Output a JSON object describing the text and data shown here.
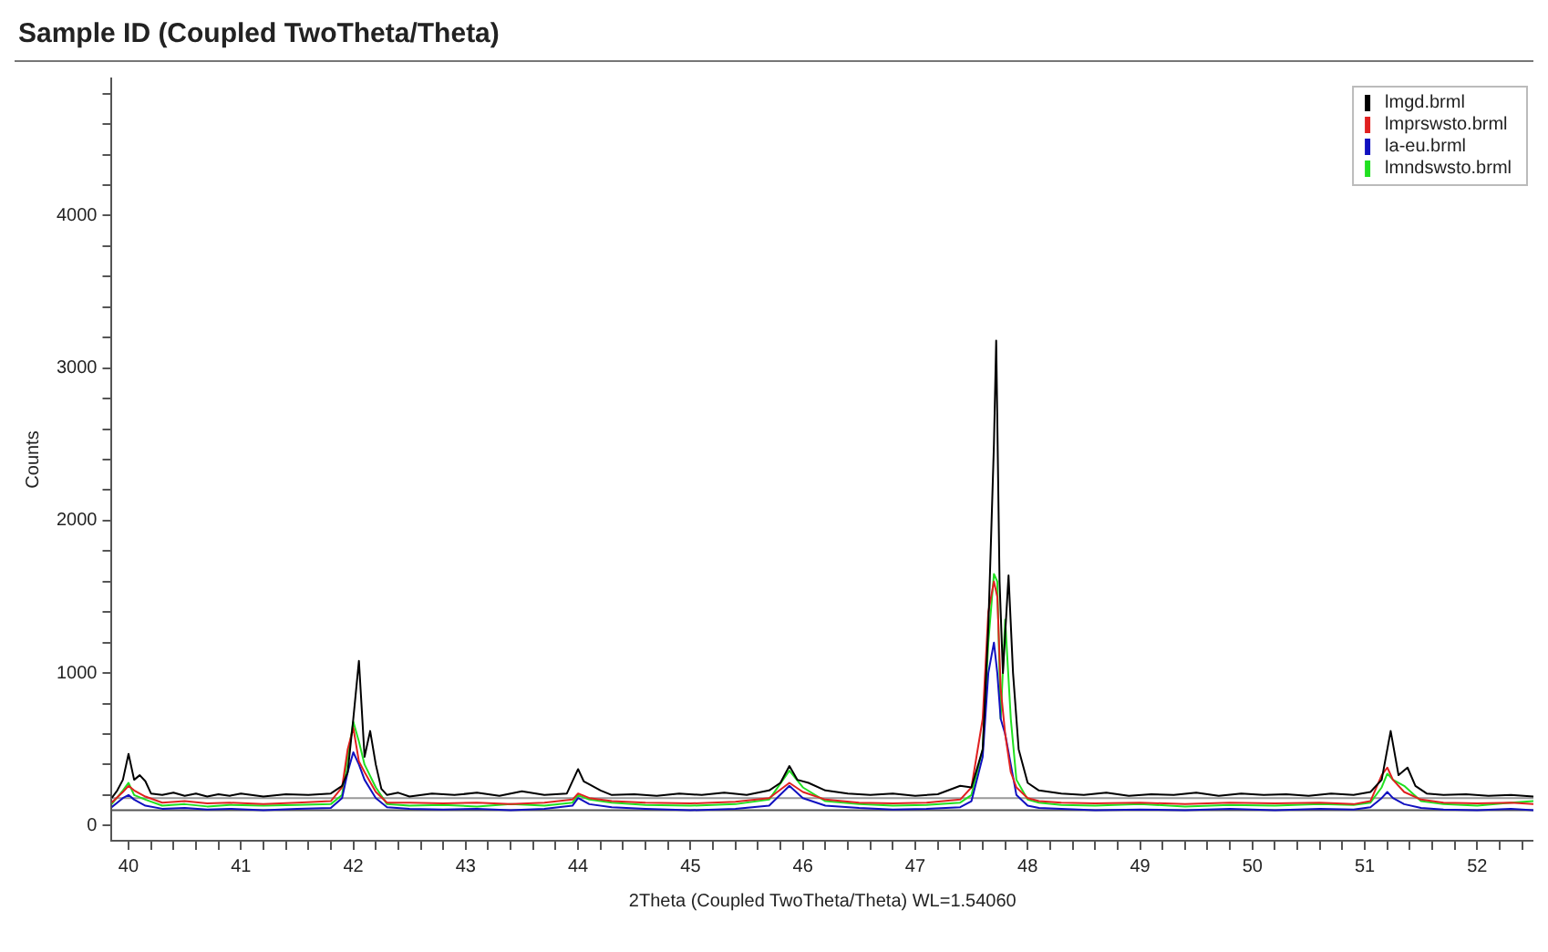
{
  "chart_data": {
    "type": "line",
    "title": "Sample ID (Coupled TwoTheta/Theta)",
    "xlabel": "2Theta (Coupled TwoTheta/Theta) WL=1.54060",
    "ylabel": "Counts",
    "xlim": [
      39.85,
      52.5
    ],
    "ylim": [
      -100,
      4900
    ],
    "xticks": [
      {
        "value": 40,
        "label": "40"
      },
      {
        "value": 40.2,
        "label": null
      },
      {
        "value": 40.4,
        "label": null
      },
      {
        "value": 40.6,
        "label": null
      },
      {
        "value": 40.8,
        "label": null
      },
      {
        "value": 41,
        "label": "41"
      },
      {
        "value": 41.2,
        "label": null
      },
      {
        "value": 41.4,
        "label": null
      },
      {
        "value": 41.6,
        "label": null
      },
      {
        "value": 41.8,
        "label": null
      },
      {
        "value": 42,
        "label": "42"
      },
      {
        "value": 42.2,
        "label": null
      },
      {
        "value": 42.4,
        "label": null
      },
      {
        "value": 42.6,
        "label": null
      },
      {
        "value": 42.8,
        "label": null
      },
      {
        "value": 43,
        "label": "43"
      },
      {
        "value": 43.2,
        "label": null
      },
      {
        "value": 43.4,
        "label": null
      },
      {
        "value": 43.6,
        "label": null
      },
      {
        "value": 43.8,
        "label": null
      },
      {
        "value": 44,
        "label": "44"
      },
      {
        "value": 44.2,
        "label": null
      },
      {
        "value": 44.4,
        "label": null
      },
      {
        "value": 44.6,
        "label": null
      },
      {
        "value": 44.8,
        "label": null
      },
      {
        "value": 45,
        "label": "45"
      },
      {
        "value": 45.2,
        "label": null
      },
      {
        "value": 45.4,
        "label": null
      },
      {
        "value": 45.6,
        "label": null
      },
      {
        "value": 45.8,
        "label": null
      },
      {
        "value": 46,
        "label": "46"
      },
      {
        "value": 46.2,
        "label": null
      },
      {
        "value": 46.4,
        "label": null
      },
      {
        "value": 46.6,
        "label": null
      },
      {
        "value": 46.8,
        "label": null
      },
      {
        "value": 47,
        "label": "47"
      },
      {
        "value": 47.2,
        "label": null
      },
      {
        "value": 47.4,
        "label": null
      },
      {
        "value": 47.6,
        "label": null
      },
      {
        "value": 47.8,
        "label": null
      },
      {
        "value": 48,
        "label": "48"
      },
      {
        "value": 48.2,
        "label": null
      },
      {
        "value": 48.4,
        "label": null
      },
      {
        "value": 48.6,
        "label": null
      },
      {
        "value": 48.8,
        "label": null
      },
      {
        "value": 49,
        "label": "49"
      },
      {
        "value": 49.2,
        "label": null
      },
      {
        "value": 49.4,
        "label": null
      },
      {
        "value": 49.6,
        "label": null
      },
      {
        "value": 49.8,
        "label": null
      },
      {
        "value": 50,
        "label": "50"
      },
      {
        "value": 50.2,
        "label": null
      },
      {
        "value": 50.4,
        "label": null
      },
      {
        "value": 50.6,
        "label": null
      },
      {
        "value": 50.8,
        "label": null
      },
      {
        "value": 51,
        "label": "51"
      },
      {
        "value": 51.2,
        "label": null
      },
      {
        "value": 51.4,
        "label": null
      },
      {
        "value": 51.6,
        "label": null
      },
      {
        "value": 51.8,
        "label": null
      },
      {
        "value": 52,
        "label": "52"
      },
      {
        "value": 52.2,
        "label": null
      },
      {
        "value": 52.4,
        "label": null
      }
    ],
    "yticks": [
      0,
      {
        "value": 200,
        "label": null
      },
      {
        "value": 400,
        "label": null
      },
      {
        "value": 600,
        "label": null
      },
      {
        "value": 800,
        "label": null
      },
      1000,
      {
        "value": 1200,
        "label": null
      },
      {
        "value": 1400,
        "label": null
      },
      {
        "value": 1600,
        "label": null
      },
      {
        "value": 1800,
        "label": null
      },
      2000,
      {
        "value": 2200,
        "label": null
      },
      {
        "value": 2400,
        "label": null
      },
      {
        "value": 2600,
        "label": null
      },
      {
        "value": 2800,
        "label": null
      },
      3000,
      {
        "value": 3200,
        "label": null
      },
      {
        "value": 3400,
        "label": null
      },
      {
        "value": 3600,
        "label": null
      },
      {
        "value": 3800,
        "label": null
      },
      4000,
      {
        "value": 4200,
        "label": null
      },
      {
        "value": 4400,
        "label": null
      },
      {
        "value": 4600,
        "label": null
      },
      {
        "value": 4800,
        "label": null
      }
    ],
    "grid": false,
    "legend": "top right",
    "marker": "none",
    "line_style": "solid",
    "ref_lines": [
      {
        "axis": "y",
        "value": 180,
        "color": "#999999"
      },
      {
        "axis": "y",
        "value": 100,
        "color": "#555555"
      }
    ],
    "series": [
      {
        "name": "lmgd.brml",
        "color": "#000000",
        "x": [
          39.85,
          39.9,
          39.95,
          40.0,
          40.05,
          40.1,
          40.15,
          40.2,
          40.3,
          40.4,
          40.5,
          40.6,
          40.7,
          40.8,
          40.9,
          41.0,
          41.2,
          41.4,
          41.6,
          41.8,
          41.9,
          41.95,
          42.0,
          42.05,
          42.1,
          42.15,
          42.2,
          42.25,
          42.3,
          42.4,
          42.5,
          42.7,
          42.9,
          43.1,
          43.3,
          43.5,
          43.7,
          43.9,
          44.0,
          44.05,
          44.1,
          44.2,
          44.3,
          44.5,
          44.7,
          44.9,
          45.1,
          45.3,
          45.5,
          45.7,
          45.8,
          45.88,
          45.95,
          46.05,
          46.2,
          46.4,
          46.6,
          46.8,
          47.0,
          47.2,
          47.4,
          47.5,
          47.6,
          47.65,
          47.7,
          47.72,
          47.75,
          47.78,
          47.83,
          47.87,
          47.92,
          48.0,
          48.1,
          48.3,
          48.5,
          48.7,
          48.9,
          49.1,
          49.3,
          49.5,
          49.7,
          49.9,
          50.1,
          50.3,
          50.5,
          50.7,
          50.9,
          51.05,
          51.15,
          51.23,
          51.3,
          51.38,
          51.45,
          51.55,
          51.7,
          51.9,
          52.1,
          52.3,
          52.5
        ],
        "values": [
          180,
          230,
          300,
          470,
          300,
          330,
          290,
          210,
          200,
          215,
          195,
          210,
          190,
          205,
          195,
          210,
          190,
          205,
          200,
          210,
          260,
          350,
          700,
          1080,
          450,
          620,
          400,
          240,
          200,
          215,
          190,
          210,
          200,
          215,
          195,
          225,
          200,
          210,
          370,
          290,
          270,
          230,
          200,
          205,
          195,
          210,
          200,
          215,
          200,
          230,
          280,
          390,
          300,
          280,
          230,
          210,
          200,
          210,
          195,
          205,
          260,
          250,
          500,
          1300,
          2500,
          3180,
          1600,
          1000,
          1640,
          1000,
          500,
          280,
          230,
          210,
          200,
          215,
          195,
          205,
          200,
          215,
          195,
          210,
          200,
          205,
          195,
          210,
          200,
          220,
          300,
          620,
          330,
          380,
          260,
          210,
          200,
          205,
          195,
          200,
          190
        ]
      },
      {
        "name": "lmprswsto.brml",
        "color": "#e02020",
        "x": [
          39.85,
          39.95,
          40.0,
          40.05,
          40.15,
          40.3,
          40.5,
          40.7,
          40.9,
          41.2,
          41.5,
          41.8,
          41.9,
          41.95,
          42.0,
          42.05,
          42.1,
          42.2,
          42.3,
          42.5,
          42.8,
          43.1,
          43.4,
          43.7,
          43.95,
          44.0,
          44.1,
          44.3,
          44.6,
          45.0,
          45.4,
          45.7,
          45.88,
          46.0,
          46.2,
          46.5,
          46.8,
          47.1,
          47.4,
          47.5,
          47.6,
          47.65,
          47.7,
          47.73,
          47.76,
          47.8,
          47.85,
          47.9,
          48.0,
          48.1,
          48.3,
          48.6,
          49.0,
          49.4,
          49.8,
          50.2,
          50.6,
          50.9,
          51.05,
          51.15,
          51.2,
          51.25,
          51.35,
          51.5,
          51.7,
          52.0,
          52.3,
          52.5
        ],
        "values": [
          150,
          220,
          260,
          230,
          190,
          150,
          160,
          145,
          150,
          140,
          150,
          160,
          250,
          500,
          640,
          420,
          350,
          220,
          150,
          150,
          145,
          150,
          140,
          150,
          170,
          210,
          180,
          160,
          150,
          145,
          155,
          180,
          280,
          220,
          170,
          150,
          145,
          150,
          170,
          250,
          700,
          1400,
          1600,
          1500,
          900,
          600,
          350,
          250,
          180,
          160,
          150,
          145,
          150,
          140,
          150,
          145,
          150,
          140,
          160,
          330,
          380,
          300,
          220,
          170,
          150,
          145,
          150,
          140
        ]
      },
      {
        "name": "la-eu.brml",
        "color": "#1010c0",
        "x": [
          39.85,
          39.95,
          40.0,
          40.05,
          40.15,
          40.3,
          40.5,
          40.7,
          40.9,
          41.2,
          41.5,
          41.8,
          41.9,
          41.95,
          42.0,
          42.05,
          42.1,
          42.2,
          42.3,
          42.5,
          42.8,
          43.1,
          43.4,
          43.7,
          43.95,
          44.0,
          44.1,
          44.3,
          44.6,
          45.0,
          45.4,
          45.7,
          45.88,
          46.0,
          46.2,
          46.5,
          46.8,
          47.1,
          47.4,
          47.5,
          47.6,
          47.65,
          47.7,
          47.73,
          47.76,
          47.8,
          47.85,
          47.9,
          48.0,
          48.1,
          48.3,
          48.6,
          49.0,
          49.4,
          49.8,
          50.2,
          50.6,
          50.9,
          51.05,
          51.15,
          51.2,
          51.25,
          51.35,
          51.5,
          51.7,
          52.0,
          52.3,
          52.5
        ],
        "values": [
          120,
          180,
          200,
          170,
          130,
          110,
          115,
          105,
          110,
          100,
          110,
          115,
          180,
          350,
          480,
          400,
          300,
          180,
          120,
          110,
          105,
          110,
          100,
          110,
          130,
          180,
          140,
          120,
          110,
          100,
          110,
          130,
          260,
          180,
          130,
          115,
          105,
          110,
          120,
          160,
          450,
          1000,
          1200,
          1000,
          700,
          600,
          400,
          200,
          130,
          115,
          110,
          100,
          105,
          100,
          110,
          100,
          110,
          105,
          120,
          180,
          220,
          180,
          140,
          115,
          105,
          100,
          110,
          100
        ]
      },
      {
        "name": "lmndswsto.brml",
        "color": "#20e020",
        "x": [
          39.85,
          39.95,
          40.0,
          40.05,
          40.15,
          40.3,
          40.5,
          40.7,
          40.9,
          41.2,
          41.5,
          41.8,
          41.9,
          41.95,
          42.0,
          42.05,
          42.1,
          42.2,
          42.3,
          42.5,
          42.8,
          43.1,
          43.4,
          43.7,
          43.95,
          44.0,
          44.1,
          44.3,
          44.6,
          45.0,
          45.4,
          45.7,
          45.88,
          46.0,
          46.2,
          46.5,
          46.8,
          47.1,
          47.4,
          47.5,
          47.6,
          47.65,
          47.7,
          47.73,
          47.76,
          47.8,
          47.85,
          47.9,
          48.0,
          48.1,
          48.3,
          48.6,
          49.0,
          49.4,
          49.8,
          50.2,
          50.6,
          50.9,
          51.05,
          51.15,
          51.2,
          51.25,
          51.35,
          51.5,
          51.7,
          52.0,
          52.3,
          52.5
        ],
        "values": [
          140,
          230,
          280,
          200,
          170,
          130,
          140,
          125,
          135,
          130,
          135,
          140,
          200,
          450,
          680,
          550,
          400,
          250,
          140,
          130,
          135,
          125,
          140,
          130,
          150,
          200,
          170,
          150,
          135,
          130,
          140,
          170,
          360,
          250,
          160,
          140,
          130,
          135,
          150,
          200,
          500,
          1200,
          1650,
          1600,
          700,
          1350,
          700,
          300,
          170,
          150,
          135,
          130,
          140,
          125,
          135,
          130,
          140,
          135,
          150,
          250,
          340,
          300,
          260,
          160,
          140,
          130,
          150,
          160
        ]
      }
    ]
  }
}
